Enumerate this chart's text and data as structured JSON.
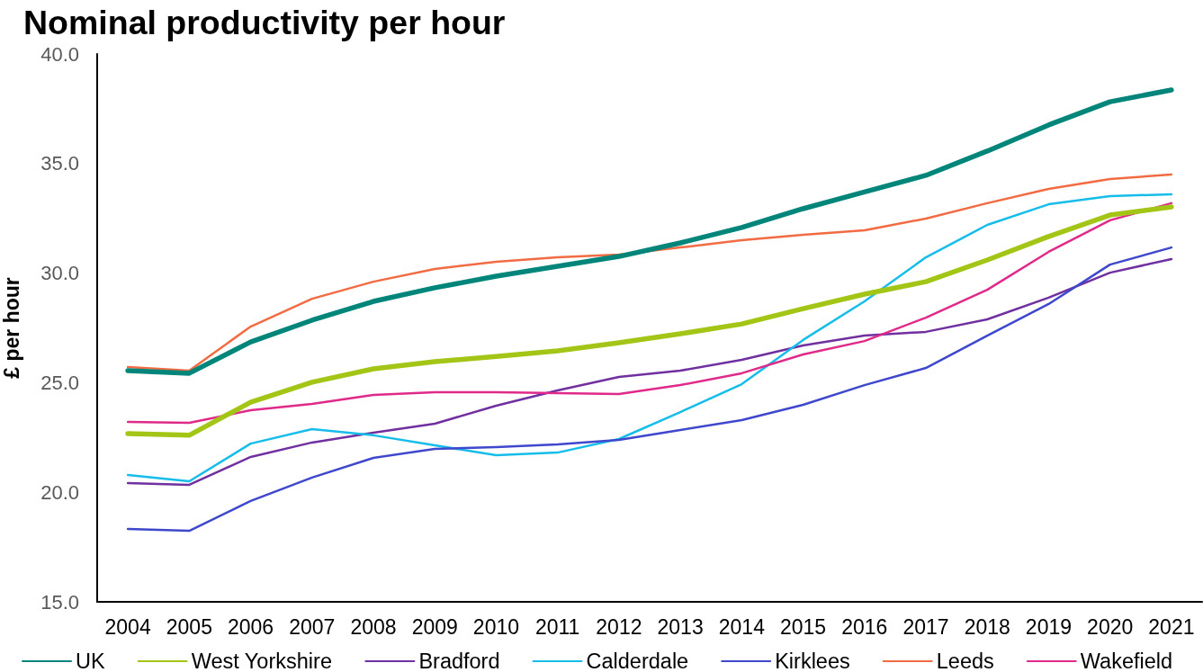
{
  "chart_data": {
    "type": "line",
    "title": "Nominal productivity per hour",
    "ylabel": "£ per hour",
    "categories": [
      "2004",
      "2005",
      "2006",
      "2007",
      "2008",
      "2009",
      "2010",
      "2011",
      "2012",
      "2013",
      "2014",
      "2015",
      "2016",
      "2017",
      "2018",
      "2019",
      "2020",
      "2021"
    ],
    "series": [
      {
        "name": "UK",
        "color": "#00857a",
        "values": [
          25.55,
          25.43,
          26.86,
          27.85,
          28.71,
          29.33,
          29.86,
          30.31,
          30.76,
          31.38,
          32.08,
          32.94,
          33.7,
          34.46,
          35.57,
          36.76,
          37.82,
          38.36
        ]
      },
      {
        "name": "West Yorkshire",
        "color": "#a3c515",
        "values": [
          22.68,
          22.6,
          24.11,
          25.02,
          25.63,
          25.96,
          26.2,
          26.45,
          26.82,
          27.23,
          27.68,
          28.38,
          29.04,
          29.61,
          30.6,
          31.67,
          32.65,
          33.02
        ]
      },
      {
        "name": "Bradford",
        "color": "#7030a0",
        "values": [
          20.42,
          20.34,
          21.61,
          22.27,
          22.72,
          23.13,
          23.95,
          24.65,
          25.26,
          25.55,
          26.04,
          26.7,
          27.15,
          27.32,
          27.89,
          28.88,
          30.02,
          30.64
        ]
      },
      {
        "name": "Calderdale",
        "color": "#17bdea",
        "values": [
          20.79,
          20.5,
          22.22,
          22.88,
          22.6,
          22.14,
          21.69,
          21.81,
          22.43,
          23.66,
          24.93,
          26.95,
          28.71,
          30.72,
          32.2,
          33.14,
          33.51,
          33.6
        ]
      },
      {
        "name": "Kirklees",
        "color": "#3f48cc",
        "values": [
          18.33,
          18.24,
          19.6,
          20.67,
          21.57,
          21.98,
          22.06,
          22.18,
          22.39,
          22.84,
          23.29,
          23.99,
          24.89,
          25.67,
          27.15,
          28.59,
          30.39,
          31.17
        ]
      },
      {
        "name": "Leeds",
        "color": "#f26b43",
        "values": [
          25.71,
          25.55,
          27.56,
          28.83,
          29.61,
          30.19,
          30.52,
          30.72,
          30.85,
          31.17,
          31.5,
          31.75,
          31.95,
          32.49,
          33.19,
          33.84,
          34.29,
          34.5
        ]
      },
      {
        "name": "Wakefield",
        "color": "#e02a8a",
        "values": [
          23.21,
          23.17,
          23.74,
          24.03,
          24.44,
          24.56,
          24.56,
          24.52,
          24.48,
          24.89,
          25.43,
          26.29,
          26.9,
          27.97,
          29.24,
          30.97,
          32.41,
          33.19
        ]
      }
    ],
    "ylim": [
      15,
      40
    ],
    "yticks": [
      {
        "value": 15,
        "label": "15.0"
      },
      {
        "value": 20,
        "label": "20.0"
      },
      {
        "value": 25,
        "label": "25.0"
      },
      {
        "value": 30,
        "label": "30.0"
      },
      {
        "value": 35,
        "label": "35.0"
      },
      {
        "value": 40,
        "label": "40.0"
      }
    ],
    "grid": false,
    "legend": "bottom",
    "marker": "none",
    "line_style": "solid"
  }
}
